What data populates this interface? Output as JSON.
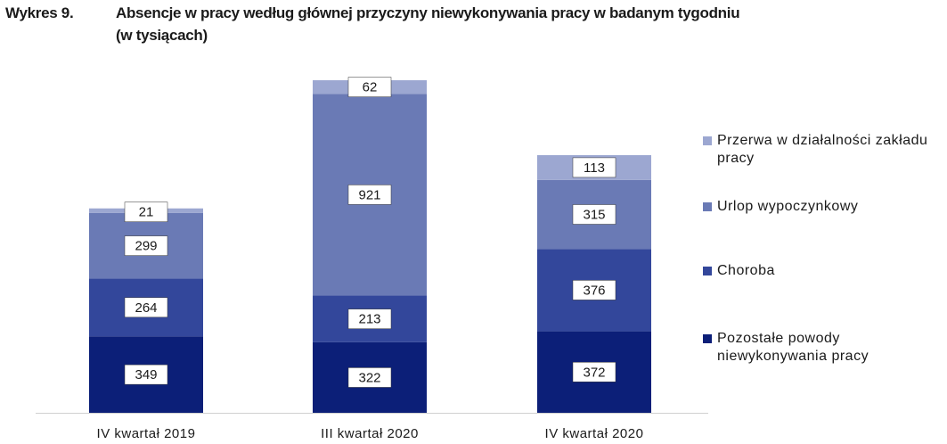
{
  "chart_data": {
    "type": "stacked-bar",
    "label": "Wykres 9.",
    "title": [
      "Absencje w pracy według głównej przyczyny niewykonywania pracy w badanym tygodniu",
      "(w tysiącach)"
    ],
    "categories": [
      "IV kwartał 2019",
      "III kwartał 2020",
      "IV kwartał 2020"
    ],
    "series": [
      {
        "name": "Pozostałe powody niewykonywania pracy",
        "color": "#0c1f78",
        "values": [
          349,
          322,
          372
        ]
      },
      {
        "name": "Choroba",
        "color": "#33479b",
        "values": [
          264,
          213,
          376
        ]
      },
      {
        "name": "Urlop wypoczynkowy",
        "color": "#6a7ab5",
        "values": [
          299,
          921,
          315
        ]
      },
      {
        "name": "Przerwa w działalności zakładu pracy",
        "color": "#9ca7d1",
        "values": [
          21,
          62,
          113
        ]
      }
    ],
    "legend": "right"
  }
}
